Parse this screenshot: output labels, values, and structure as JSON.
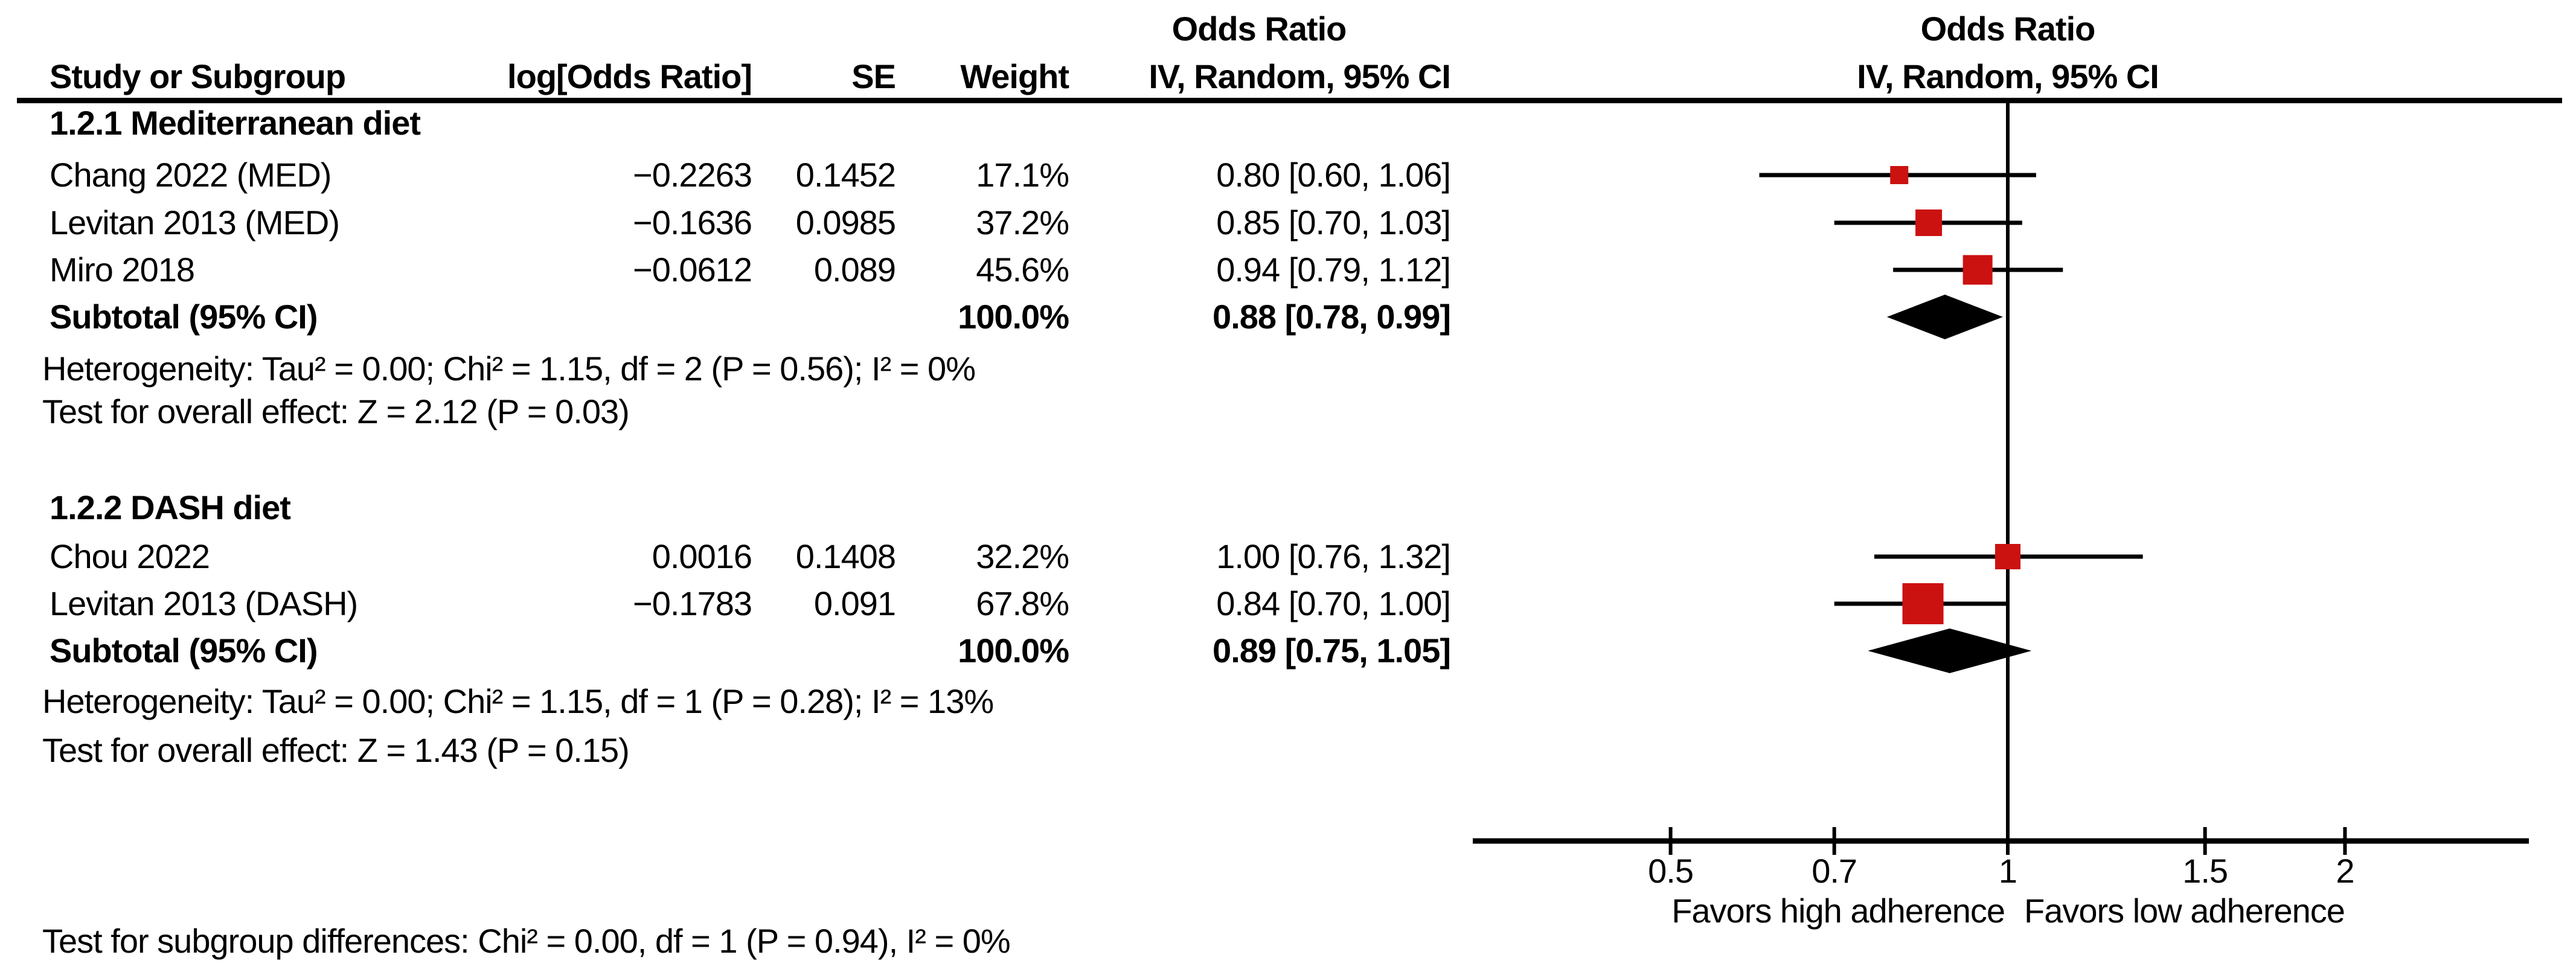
{
  "header": {
    "stats_title": "Odds Ratio",
    "plot_title": "Odds Ratio",
    "plot_subtitle": "IV, Random, 95% CI",
    "columns": {
      "study": "Study or Subgroup",
      "log_or": "log[Odds Ratio]",
      "se": "SE",
      "weight": "Weight",
      "or_ci": "IV, Random, 95% CI"
    }
  },
  "colors": {
    "marker_red": "#cc1111",
    "line_black": "#000000",
    "diamond_black": "#000000"
  },
  "chart_data": {
    "type": "forest",
    "x_scale": "log",
    "effect_measure": "Odds Ratio",
    "model": "IV, Random, 95% CI",
    "axis_ticks": [
      0.5,
      0.7,
      1,
      1.5,
      2
    ],
    "axis_line_range": [
      0.33,
      2.92
    ],
    "favors_left": "Favors high adherence",
    "favors_right": "Favors low adherence",
    "footer": "Test for subgroup differences: Chi² = 0.00, df = 1 (P = 0.94), I² = 0%",
    "subgroups": [
      {
        "label": "1.2.1 Mediterranean diet",
        "studies": [
          {
            "name": "Chang 2022 (MED)",
            "log_or": "−0.2263",
            "se": "0.1452",
            "weight": "17.1%",
            "or_ci": "0.80 [0.60, 1.06]",
            "or": 0.8,
            "ci_low": 0.6,
            "ci_high": 1.06,
            "weight_pct": 17.1,
            "marker_px": 30
          },
          {
            "name": "Levitan 2013 (MED)",
            "log_or": "−0.1636",
            "se": "0.0985",
            "weight": "37.2%",
            "or_ci": "0.85 [0.70, 1.03]",
            "or": 0.85,
            "ci_low": 0.7,
            "ci_high": 1.03,
            "weight_pct": 37.2,
            "marker_px": 44
          },
          {
            "name": "Miro 2018",
            "log_or": "−0.0612",
            "se": "0.089",
            "weight": "45.6%",
            "or_ci": "0.94 [0.79, 1.12]",
            "or": 0.94,
            "ci_low": 0.79,
            "ci_high": 1.12,
            "weight_pct": 45.6,
            "marker_px": 49
          }
        ],
        "subtotal": {
          "label": "Subtotal (95% CI)",
          "weight": "100.0%",
          "or_ci": "0.88 [0.78, 0.99]",
          "or": 0.88,
          "ci_low": 0.78,
          "ci_high": 0.99
        },
        "heterogeneity": "Heterogeneity: Tau² = 0.00; Chi² = 1.15, df = 2 (P = 0.56); I² = 0%",
        "overall_effect": "Test for overall effect: Z = 2.12 (P = 0.03)"
      },
      {
        "label": "1.2.2 DASH diet",
        "studies": [
          {
            "name": "Chou 2022",
            "log_or": "0.0016",
            "se": "0.1408",
            "weight": "32.2%",
            "or_ci": "1.00 [0.76, 1.32]",
            "or": 1.0,
            "ci_low": 0.76,
            "ci_high": 1.32,
            "weight_pct": 32.2,
            "marker_px": 42
          },
          {
            "name": "Levitan 2013 (DASH)",
            "log_or": "−0.1783",
            "se": "0.091",
            "weight": "67.8%",
            "or_ci": "0.84 [0.70, 1.00]",
            "or": 0.84,
            "ci_low": 0.7,
            "ci_high": 1.0,
            "weight_pct": 67.8,
            "marker_px": 68
          }
        ],
        "subtotal": {
          "label": "Subtotal (95% CI)",
          "weight": "100.0%",
          "or_ci": "0.89 [0.75, 1.05]",
          "or": 0.89,
          "ci_low": 0.75,
          "ci_high": 1.05
        },
        "heterogeneity": "Heterogeneity: Tau² = 0.00; Chi² = 1.15, df = 1 (P = 0.28); I² = 13%",
        "overall_effect": "Test for overall effect: Z = 1.43 (P = 0.15)"
      }
    ]
  }
}
